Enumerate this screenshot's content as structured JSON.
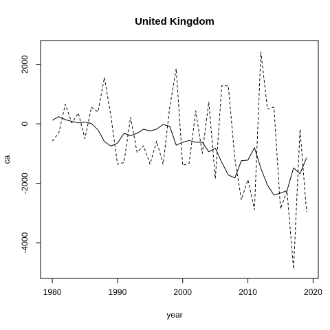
{
  "chart_data": {
    "type": "line",
    "title": "United Kingdom",
    "xlabel": "year",
    "ylabel": "ca",
    "xlim": [
      1978.2,
      2020.8
    ],
    "ylim": [
      -5200,
      2800
    ],
    "xticks": [
      1980,
      1990,
      2000,
      2010,
      2020
    ],
    "yticks": [
      -4000,
      -2000,
      0,
      2000
    ],
    "grid": false,
    "x": [
      1980,
      1981,
      1982,
      1983,
      1984,
      1985,
      1986,
      1987,
      1988,
      1989,
      1990,
      1991,
      1992,
      1993,
      1994,
      1995,
      1996,
      1997,
      1998,
      1999,
      2000,
      2001,
      2002,
      2003,
      2004,
      2005,
      2006,
      2007,
      2008,
      2009,
      2010,
      2011,
      2012,
      2013,
      2014,
      2015,
      2016,
      2017,
      2018,
      2019
    ],
    "series": [
      {
        "line_style": "solid",
        "values": [
          120,
          240,
          140,
          80,
          30,
          60,
          10,
          -200,
          -600,
          -750,
          -650,
          -320,
          -400,
          -320,
          -180,
          -240,
          -180,
          -20,
          -80,
          -720,
          -620,
          -560,
          -620,
          -620,
          -940,
          -820,
          -1300,
          -1720,
          -1820,
          -1240,
          -1220,
          -800,
          -1500,
          -2060,
          -2400,
          -2330,
          -2250,
          -1480,
          -1680,
          -1140
        ]
      },
      {
        "line_style": "dashed",
        "values": [
          -580,
          -300,
          660,
          30,
          360,
          -500,
          560,
          400,
          1560,
          250,
          -1360,
          -1300,
          220,
          -960,
          -740,
          -1360,
          -580,
          -1360,
          540,
          1860,
          -1400,
          -1320,
          440,
          -1000,
          740,
          -1840,
          1280,
          1280,
          -1180,
          -2550,
          -1880,
          -2890,
          2420,
          500,
          560,
          -2860,
          -2260,
          -4880,
          -180,
          -2960
        ]
      }
    ]
  }
}
